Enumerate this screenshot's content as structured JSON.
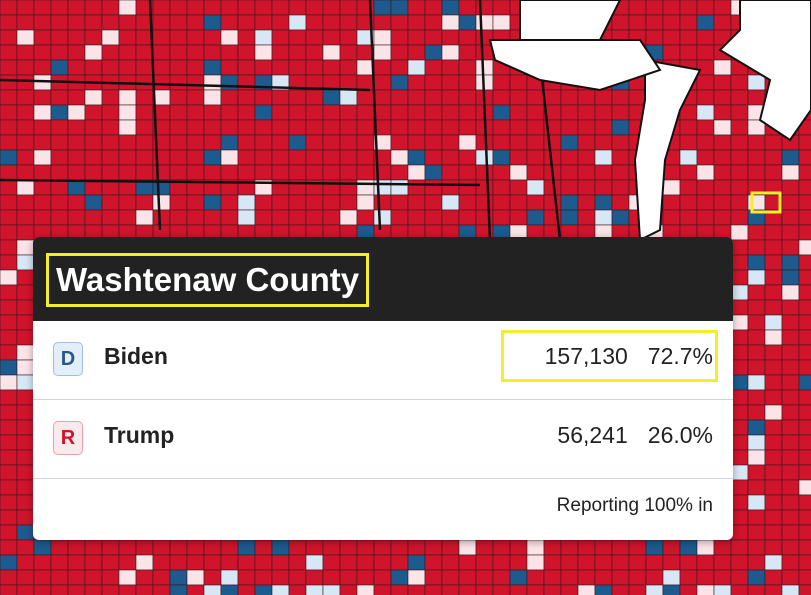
{
  "tooltip": {
    "title": "Washtenaw County",
    "rows": [
      {
        "party": "D",
        "name": "Biden",
        "votes": "157,130",
        "percent": "72.7%"
      },
      {
        "party": "R",
        "name": "Trump",
        "votes": "56,241",
        "percent": "26.0%"
      }
    ],
    "footer": "Reporting 100% in"
  }
}
